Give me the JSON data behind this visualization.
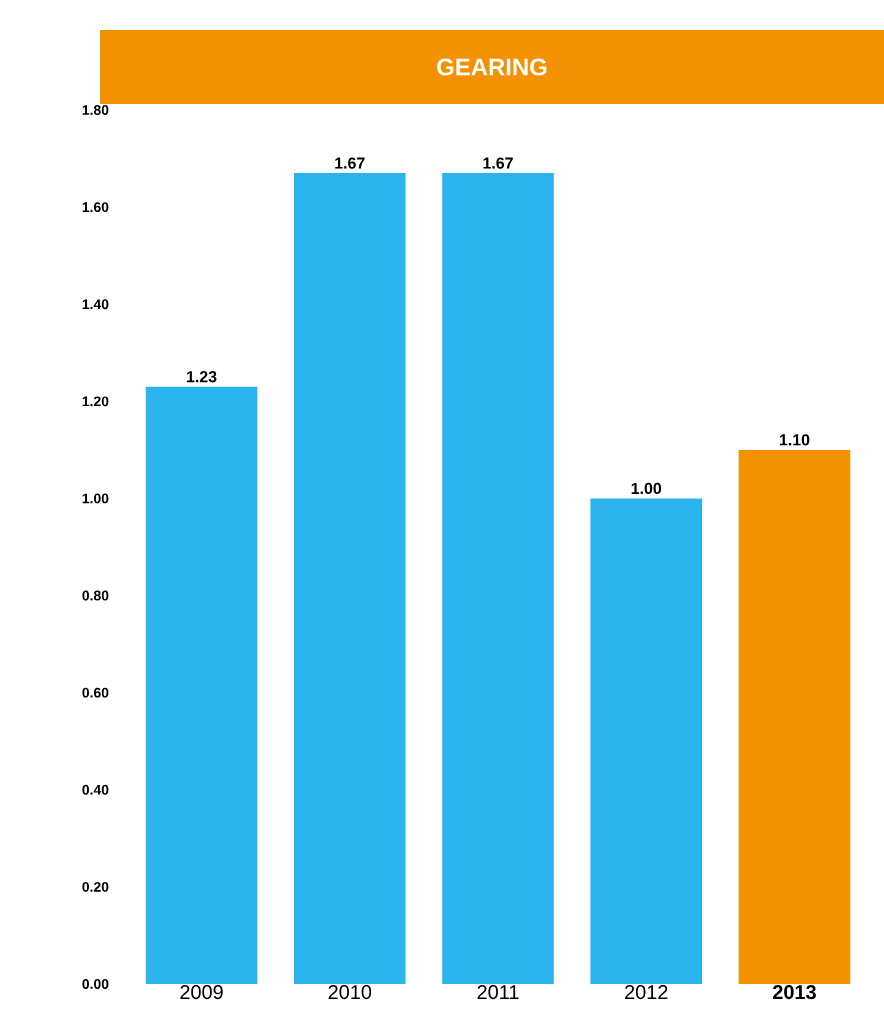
{
  "chart_data": {
    "type": "bar",
    "title": "GEARING",
    "categories": [
      "2009",
      "2010",
      "2011",
      "2012",
      "**2013**"
    ],
    "values": [
      1.23,
      1.67,
      1.67,
      1.0,
      1.1
    ],
    "value_labels": [
      "1.23",
      "1.67",
      "1.67",
      "1.00",
      "1.10"
    ],
    "colors": [
      "#2bb3ee",
      "#2bb3ee",
      "#2bb3ee",
      "#2bb3ee",
      "#f39200"
    ],
    "ylim": [
      0,
      1.8
    ],
    "yticks": [
      {
        "value": 0,
        "label": "0.00"
      },
      {
        "value": 0.2,
        "label": "0.20"
      },
      {
        "value": 0.4,
        "label": "0.40"
      },
      {
        "value": 0.6,
        "label": "0.60"
      },
      {
        "value": 0.8,
        "label": "0.80"
      },
      {
        "value": 1.0,
        "label": "1.00"
      },
      {
        "value": 1.2,
        "label": "1.20"
      },
      {
        "value": 1.4,
        "label": "1.40"
      },
      {
        "value": 1.6,
        "label": "1.60"
      },
      {
        "value": 1.8,
        "label": "1.80"
      }
    ],
    "grid": false
  }
}
